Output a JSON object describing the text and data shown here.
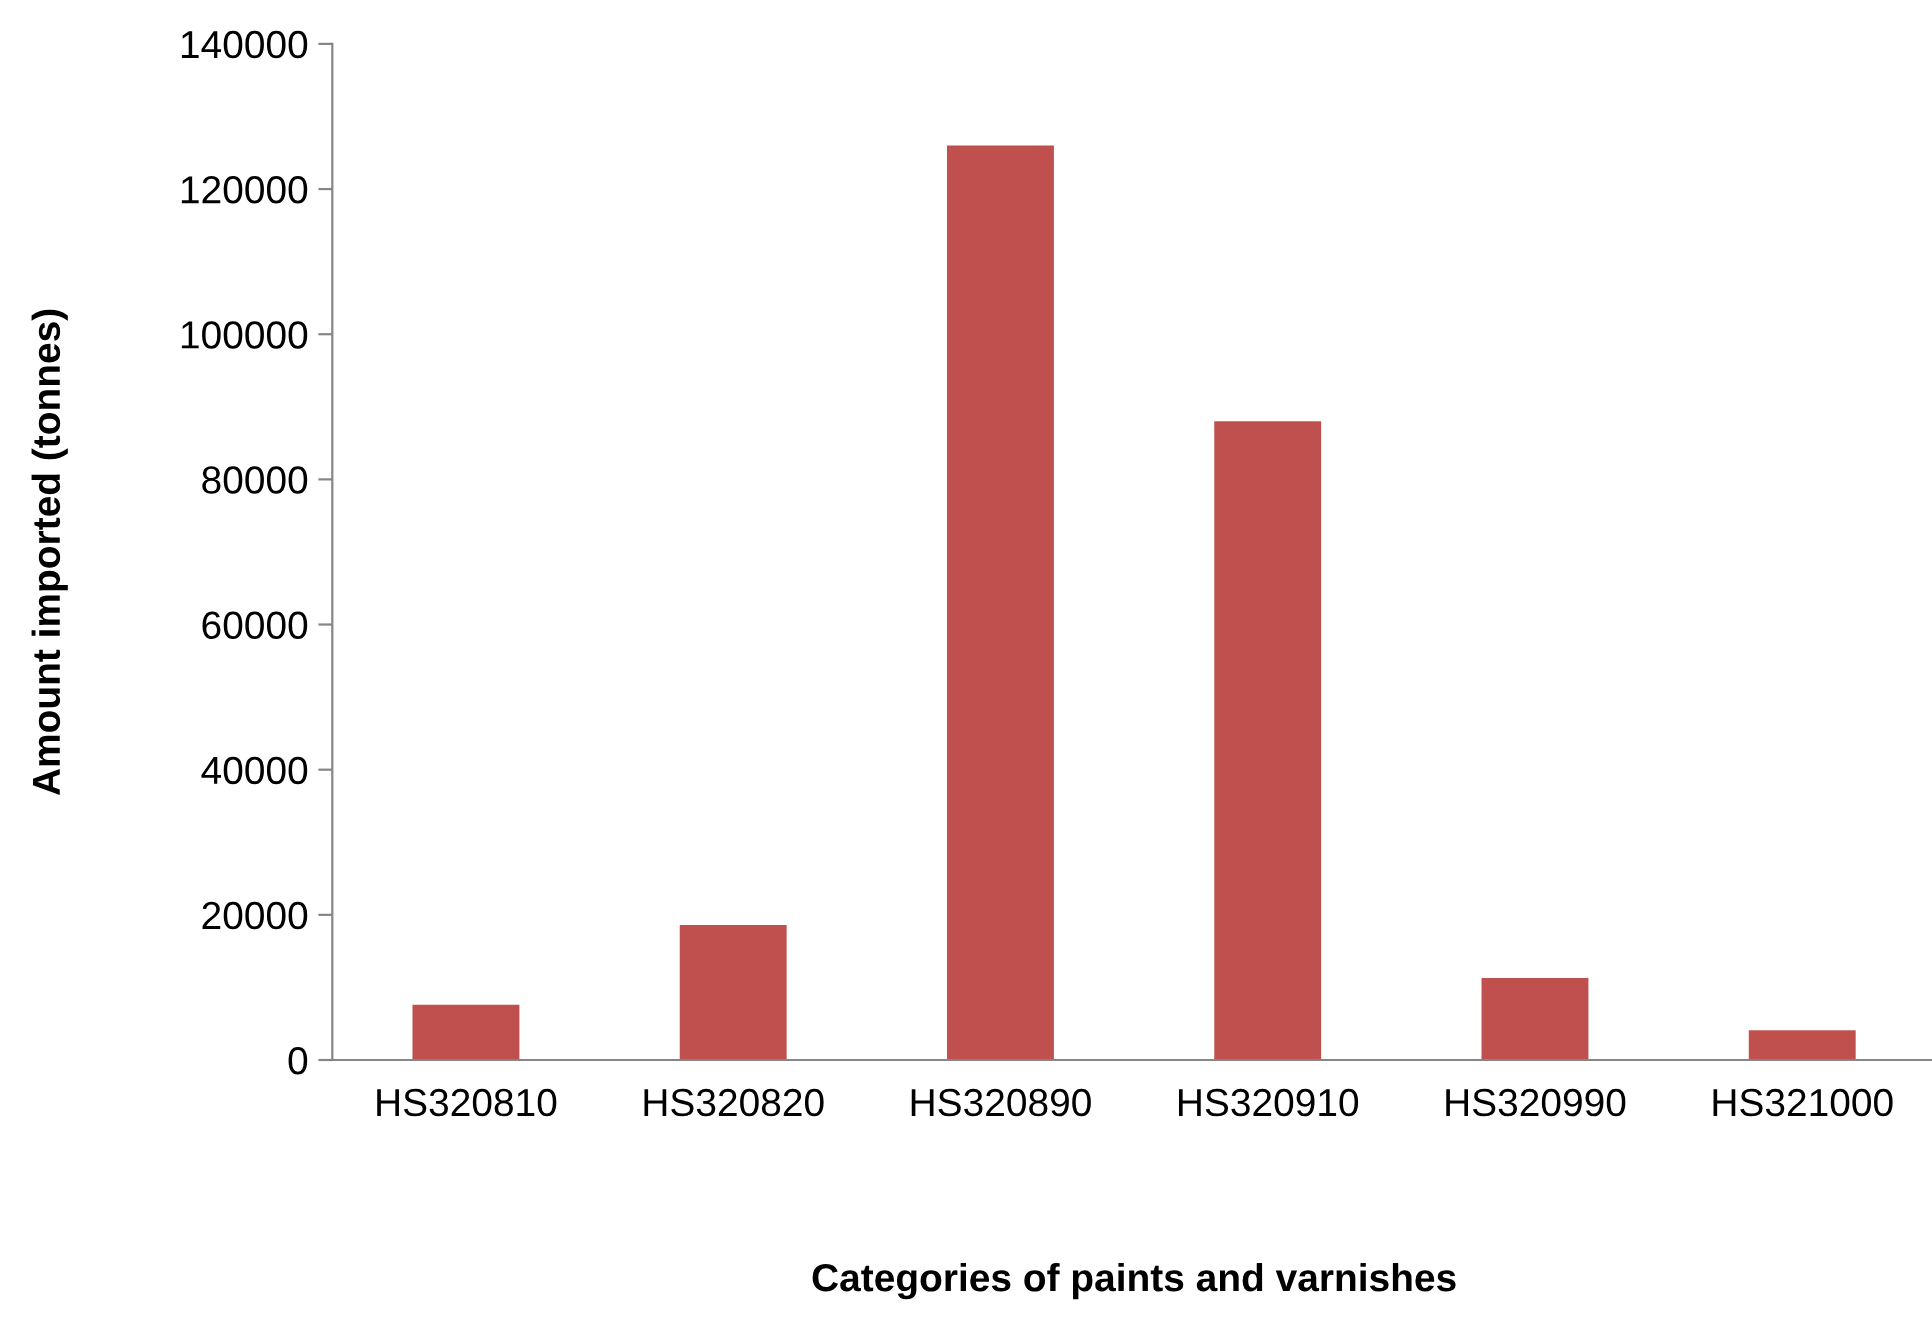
{
  "chart_data": {
    "type": "bar",
    "xlabel": "Categories of paints and varnishes",
    "ylabel": "Amount imported (tonnes)",
    "categories": [
      "HS320810",
      "HS320820",
      "HS320890",
      "HS320910",
      "HS320990",
      "HS321000"
    ],
    "values": [
      7600,
      18600,
      126000,
      88000,
      11300,
      4100
    ],
    "color": "#c0504d",
    "ylim": [
      0,
      140000
    ],
    "yticks": [
      0,
      20000,
      40000,
      60000,
      80000,
      100000,
      120000,
      140000
    ],
    "grid": false,
    "legend": false
  }
}
